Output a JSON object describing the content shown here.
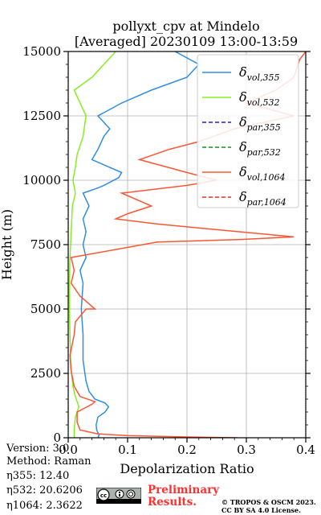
{
  "title": {
    "line1": "pollyxt_cpv at Mindelo",
    "line2": "[Averaged] 20230109 13:00-13:59"
  },
  "info": {
    "version": "Version: 3.0",
    "method": "Method: Raman",
    "eta355": "η355:  12.40",
    "eta532": "η532: 20.6206",
    "eta1064": "η1064: 2.3622"
  },
  "badge": {
    "preliminary_line1": "Preliminary",
    "preliminary_line2": "Results.",
    "copyright_line1": "© TROPOS & OSCM 2023.",
    "copyright_line2": "CC BY SA 4.0 License.",
    "license_icon": "cc-by-sa-icon"
  },
  "chart_data": {
    "type": "line",
    "xlabel": "Depolarization Ratio",
    "ylabel": "Height (m)",
    "xlim": [
      0.0,
      0.4
    ],
    "ylim": [
      0,
      15000
    ],
    "x_ticks": [
      "0.0",
      "0.1",
      "0.2",
      "0.3",
      "0.4"
    ],
    "y_ticks": [
      "0",
      "2500",
      "5000",
      "7500",
      "10000",
      "12500",
      "15000"
    ],
    "grid": true,
    "legend_position": "top-right",
    "series": [
      {
        "name": "δvol,355",
        "color": "#2f8de4",
        "style": "solid",
        "points": [
          [
            0.05,
            0
          ],
          [
            0.052,
            100
          ],
          [
            0.048,
            300
          ],
          [
            0.047,
            500
          ],
          [
            0.05,
            800
          ],
          [
            0.062,
            1000
          ],
          [
            0.068,
            1200
          ],
          [
            0.062,
            1350
          ],
          [
            0.045,
            1500
          ],
          [
            0.035,
            1800
          ],
          [
            0.03,
            2200
          ],
          [
            0.025,
            3000
          ],
          [
            0.025,
            4000
          ],
          [
            0.022,
            5000
          ],
          [
            0.025,
            6000
          ],
          [
            0.02,
            6500
          ],
          [
            0.03,
            7000
          ],
          [
            0.025,
            7500
          ],
          [
            0.03,
            8000
          ],
          [
            0.025,
            8500
          ],
          [
            0.035,
            9000
          ],
          [
            0.025,
            9500
          ],
          [
            0.05,
            9700
          ],
          [
            0.06,
            9800
          ],
          [
            0.085,
            10100
          ],
          [
            0.09,
            10300
          ],
          [
            0.04,
            10800
          ],
          [
            0.05,
            11200
          ],
          [
            0.06,
            11700
          ],
          [
            0.07,
            12000
          ],
          [
            0.05,
            12500
          ],
          [
            0.09,
            13000
          ],
          [
            0.14,
            13500
          ],
          [
            0.2,
            14000
          ],
          [
            0.22,
            14500
          ],
          [
            0.18,
            15000
          ]
        ]
      },
      {
        "name": "δvol,532",
        "color": "#88ee22",
        "style": "solid",
        "points": [
          [
            0.01,
            0
          ],
          [
            0.01,
            300
          ],
          [
            0.012,
            800
          ],
          [
            0.018,
            1200
          ],
          [
            0.012,
            1600
          ],
          [
            0.008,
            2000
          ],
          [
            0.005,
            2600
          ],
          [
            0.004,
            3000
          ],
          [
            0.003,
            4000
          ],
          [
            0.002,
            5000
          ],
          [
            0.002,
            6000
          ],
          [
            0.003,
            7000
          ],
          [
            0.005,
            8000
          ],
          [
            0.007,
            9000
          ],
          [
            0.012,
            9500
          ],
          [
            0.008,
            10000
          ],
          [
            0.012,
            10500
          ],
          [
            0.015,
            11000
          ],
          [
            0.025,
            11700
          ],
          [
            0.03,
            12500
          ],
          [
            0.02,
            13000
          ],
          [
            0.01,
            13500
          ],
          [
            0.04,
            14000
          ],
          [
            0.06,
            14500
          ],
          [
            0.08,
            15000
          ]
        ]
      },
      {
        "name": "δpar,355",
        "color": "#2222cc",
        "style": "dashed",
        "points": []
      },
      {
        "name": "δpar,532",
        "color": "#228822",
        "style": "dashed",
        "points": []
      },
      {
        "name": "δvol,1064",
        "color": "#ff5533",
        "style": "solid",
        "points": [
          [
            0.285,
            0
          ],
          [
            0.2,
            30
          ],
          [
            0.1,
            80
          ],
          [
            0.05,
            150
          ],
          [
            0.02,
            300
          ],
          [
            0.015,
            600
          ],
          [
            0.015,
            1000
          ],
          [
            0.04,
            1300
          ],
          [
            0.045,
            1400
          ],
          [
            0.02,
            1600
          ],
          [
            0.01,
            2000
          ],
          [
            0.005,
            2600
          ],
          [
            0.003,
            3200
          ],
          [
            0.01,
            4000
          ],
          [
            0.012,
            4500
          ],
          [
            0.03,
            5000
          ],
          [
            0.045,
            5000
          ],
          [
            0.02,
            5500
          ],
          [
            0.005,
            6000
          ],
          [
            0.01,
            6500
          ],
          [
            0.005,
            7000
          ],
          [
            0.15,
            7600
          ],
          [
            0.29,
            7700
          ],
          [
            0.38,
            7800
          ],
          [
            0.15,
            8300
          ],
          [
            0.08,
            8500
          ],
          [
            0.1,
            8700
          ],
          [
            0.14,
            9000
          ],
          [
            0.09,
            9500
          ],
          [
            0.2,
            9800
          ],
          [
            0.25,
            10000
          ],
          [
            0.2,
            10300
          ],
          [
            0.12,
            10800
          ],
          [
            0.17,
            11200
          ],
          [
            0.22,
            11500
          ],
          [
            0.28,
            12000
          ],
          [
            0.38,
            12500
          ],
          [
            0.3,
            13000
          ],
          [
            0.35,
            13500
          ],
          [
            0.38,
            14000
          ],
          [
            0.39,
            14700
          ],
          [
            0.4,
            15000
          ]
        ]
      },
      {
        "name": "δpar,1064",
        "color": "#dd3333",
        "style": "dashed",
        "points": []
      }
    ]
  }
}
